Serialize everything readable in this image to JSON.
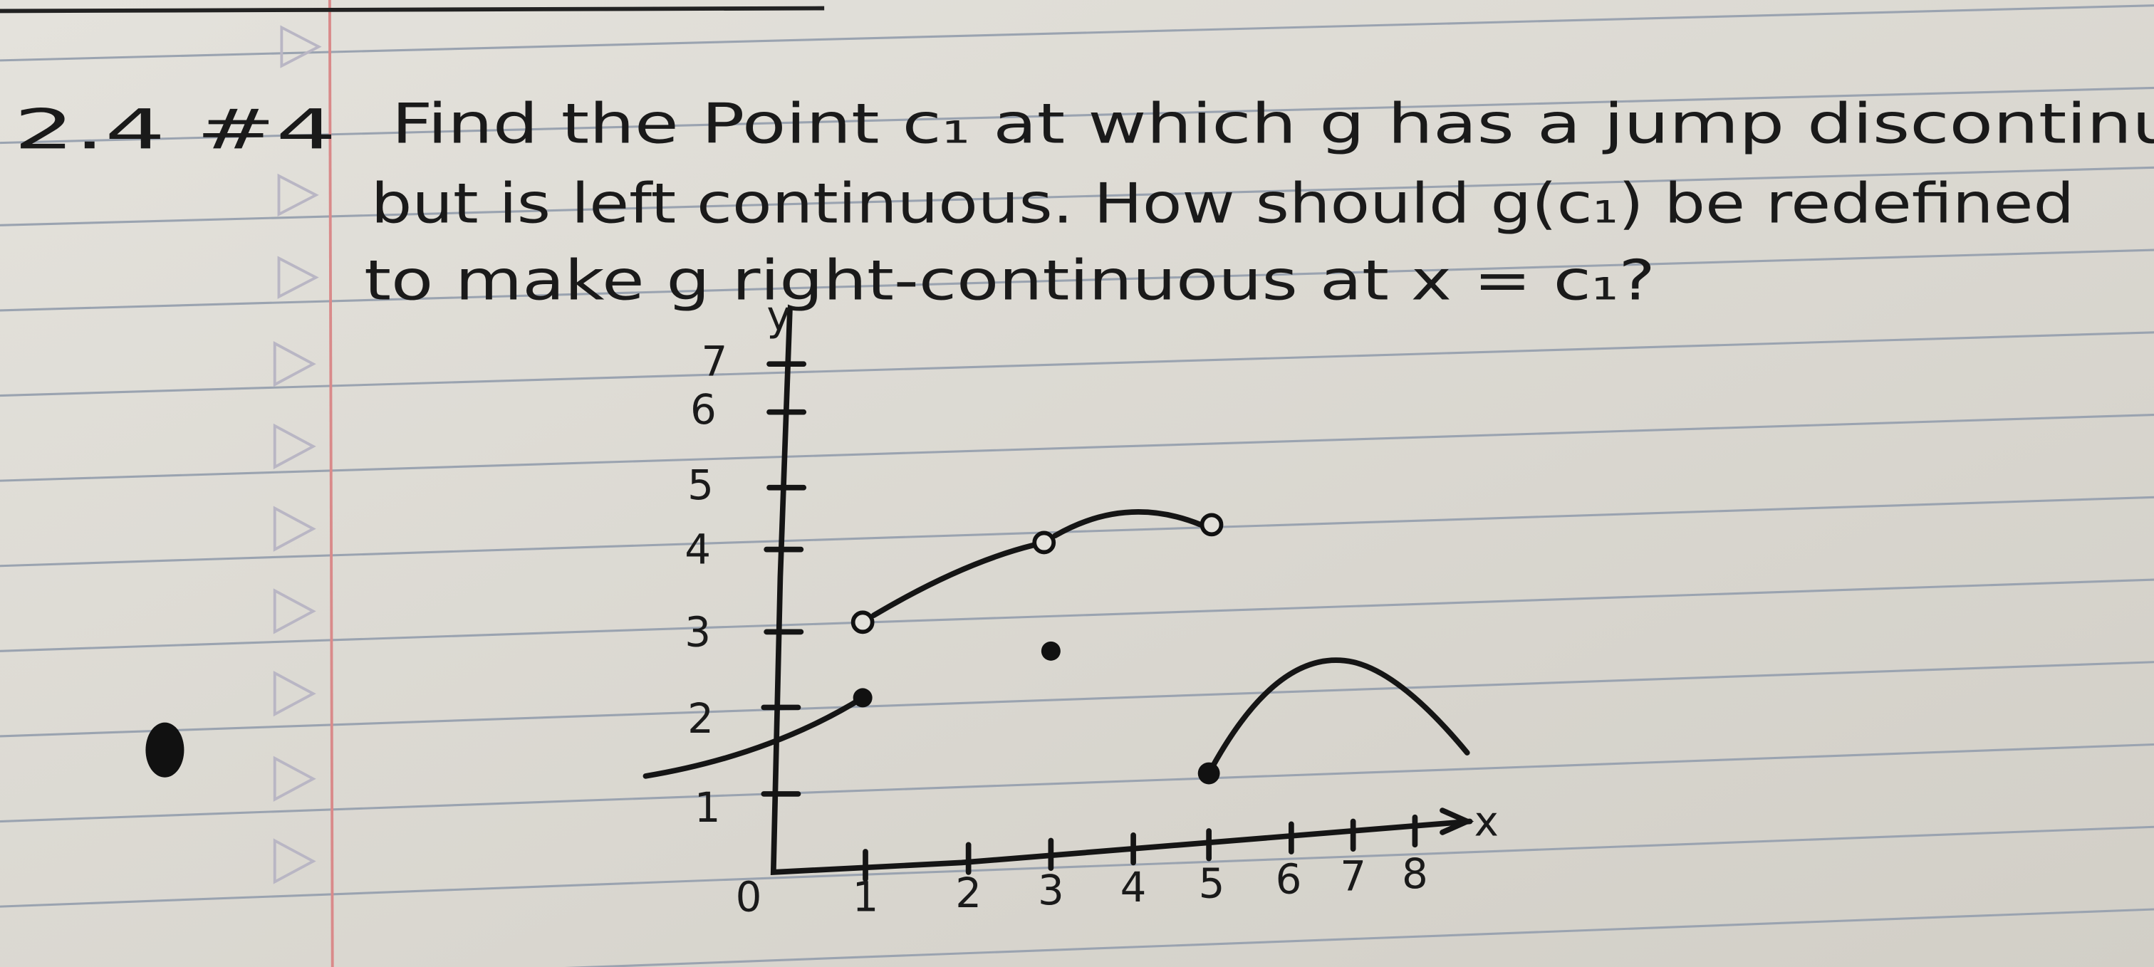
{
  "problem": {
    "number": "2.4 #4",
    "lines": [
      "Find the Point c₁ at which g has a jump discontinu",
      "but is left continuous. How should g(c₁) be redefined",
      "to make g right-continuous at x = c₁?"
    ]
  },
  "graph": {
    "y_axis_label": "y",
    "x_axis_label": "x",
    "origin_label": "0",
    "x_ticks": [
      "1",
      "2",
      "3",
      "4",
      "5",
      "6",
      "7",
      "8"
    ],
    "y_ticks": [
      "1",
      "2",
      "3",
      "4",
      "5",
      "6",
      "7"
    ]
  }
}
